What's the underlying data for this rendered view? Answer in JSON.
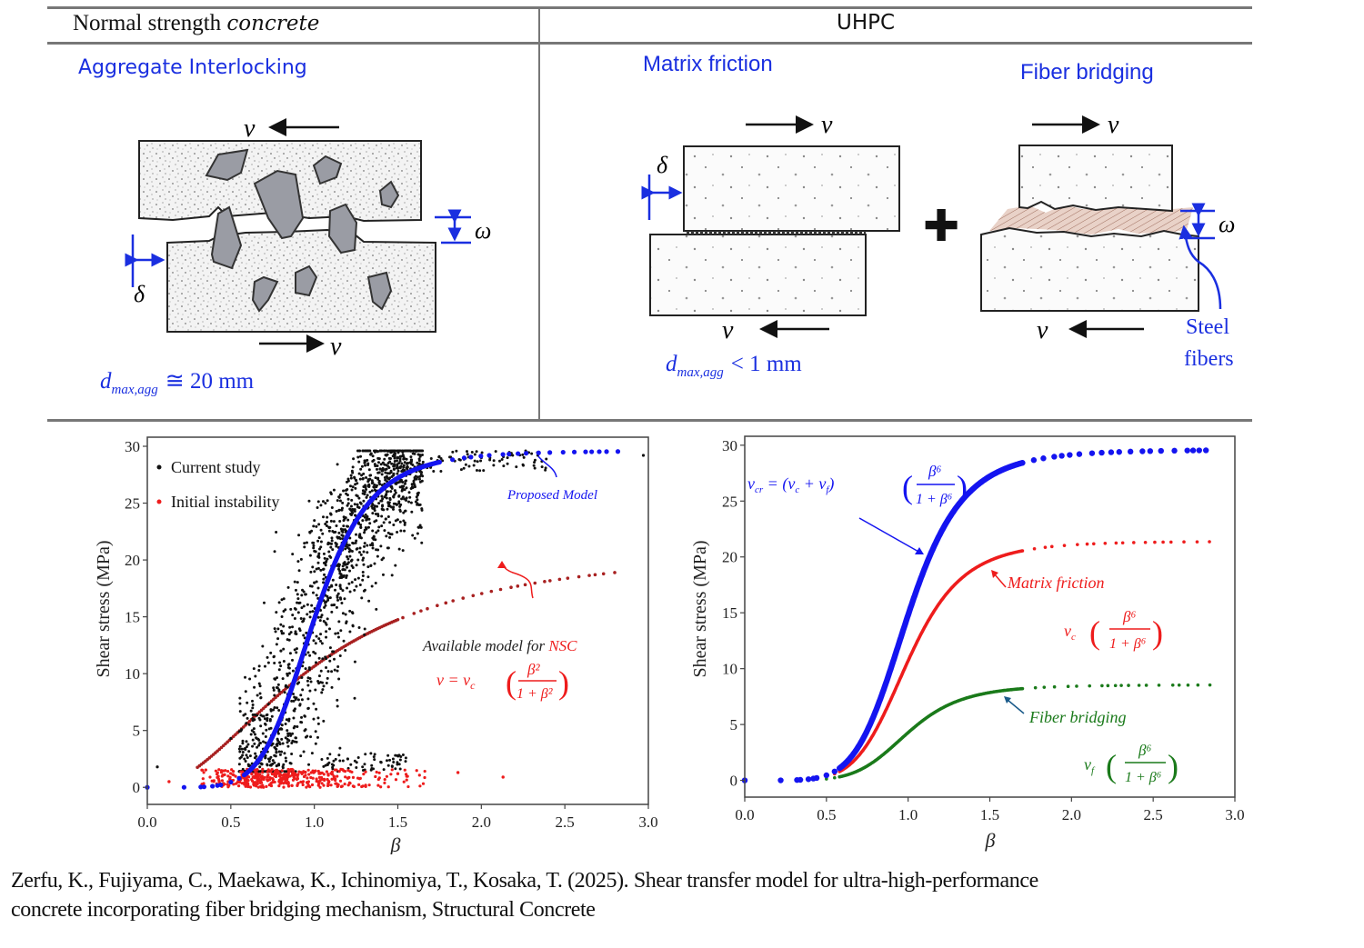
{
  "header": {
    "left_title_plain": "Normal strength ",
    "left_title_italic": "concrete",
    "right_title": "UHPC"
  },
  "nsc_panel": {
    "mechanism": "Aggregate Interlocking",
    "shear_top": "v",
    "shear_bottom": "v",
    "slip_symbol": "δ",
    "opening_symbol": "ω",
    "agg_size": "d",
    "agg_size_sub": "max,agg",
    "agg_size_rel": "≅ 20 mm"
  },
  "uhpc_panel": {
    "mechanism_1": "Matrix friction",
    "mechanism_2": "Fiber bridging",
    "plus_symbol": "✚",
    "shear_top": "v",
    "shear_bottom": "v",
    "slip_symbol": "δ",
    "opening_symbol": "ω",
    "agg_size": "d",
    "agg_size_sub": "max,agg",
    "agg_size_rel": "< 1 mm",
    "fiber_label_1": "Steel",
    "fiber_label_2": "fibers"
  },
  "colors": {
    "blue": "#1a2fe0",
    "model_blue": "#1414f0",
    "red": "#ee1c1c",
    "dark_red": "#a82020",
    "green": "#1a7a1a",
    "black": "#111111"
  },
  "chart_data": [
    {
      "type": "scatter",
      "xlabel": "β",
      "ylabel": "Shear stress (MPa)",
      "xlim": [
        0.0,
        3.0
      ],
      "ylim": [
        -1.5,
        30.8
      ],
      "xticks": [
        "0.0",
        "0.5",
        "1.0",
        "1.5",
        "2.0",
        "2.5",
        "3.0"
      ],
      "yticks": [
        "0",
        "5",
        "10",
        "15",
        "20",
        "25",
        "30"
      ],
      "legend": [
        {
          "label": "Current study",
          "color": "#111111"
        },
        {
          "label": "Initial instability",
          "color": "#ee1c1c"
        }
      ],
      "legend_position": "top-left",
      "series": [
        {
          "name": "Proposed Model",
          "color": "#1414f0",
          "formula": "vcr*beta^6/(1+beta^6)",
          "vmax": 29.6,
          "x_range": [
            0.0,
            2.85
          ]
        },
        {
          "name": "Available model for NSC",
          "color": "#a82020",
          "formula": "vc*beta^2/(1+beta^2)",
          "vmax": 21.3,
          "x_range": [
            0.3,
            2.85
          ]
        },
        {
          "name": "Current study",
          "color": "#111111",
          "cluster_description_points": [
            [
              0.06,
              1.8
            ],
            [
              0.5,
              4.3
            ],
            [
              0.8,
              12
            ],
            [
              1.0,
              18
            ],
            [
              1.1,
              24
            ],
            [
              1.25,
              27
            ],
            [
              1.5,
              29
            ],
            [
              2.0,
              29
            ],
            [
              2.97,
              29.2
            ],
            [
              1.2,
              2.5
            ],
            [
              1.4,
              2.2
            ]
          ]
        },
        {
          "name": "Initial instability",
          "color": "#ee1c1c",
          "cluster_description_points": [
            [
              0.13,
              0.5
            ],
            [
              0.5,
              0.4
            ],
            [
              0.8,
              0.8
            ],
            [
              1.2,
              0.8
            ],
            [
              1.5,
              1.2
            ],
            [
              1.86,
              1.3
            ],
            [
              2.13,
              0.9
            ]
          ]
        }
      ],
      "annotations": {
        "proposed": "Proposed Model",
        "nsc_plain": "Available model for ",
        "nsc_red": "NSC",
        "nsc_eq_lhs": "v = v",
        "nsc_eq_sub": "c",
        "nsc_eq_num": "β²",
        "nsc_eq_den": "1 + β²"
      }
    },
    {
      "type": "line",
      "xlabel": "β",
      "ylabel": "Shear stress (MPa)",
      "xlim": [
        0.0,
        3.0
      ],
      "ylim": [
        -1.5,
        30.8
      ],
      "xticks": [
        "0.0",
        "0.5",
        "1.0",
        "1.5",
        "2.0",
        "2.5",
        "3.0"
      ],
      "yticks": [
        "0",
        "5",
        "10",
        "15",
        "20",
        "25",
        "30"
      ],
      "series": [
        {
          "name": "v_cr total",
          "color": "#1414f0",
          "vmax": 29.6,
          "x_range": [
            0.0,
            2.85
          ]
        },
        {
          "name": "Matrix friction",
          "color": "#ee1c1c",
          "vmax": 21.4,
          "x_range": [
            0.55,
            2.85
          ]
        },
        {
          "name": "Fiber bridging",
          "color": "#1a7a1a",
          "vmax": 8.55,
          "x_range": [
            0.5,
            2.85
          ]
        }
      ],
      "annotations": {
        "total_lhs": "v",
        "total_sub": "cr",
        "total_mid": " = (v",
        "total_sub2": "c",
        "total_mid2": " + v",
        "total_sub3": "f",
        "total_close": ")",
        "frac_num": "β⁶",
        "frac_den": "1 + β⁶",
        "matrix": "Matrix friction",
        "matrix_eq": "v",
        "matrix_eq_sub": "c",
        "fiber": "Fiber bridging",
        "fiber_eq": "v",
        "fiber_eq_sub": "f"
      }
    }
  ],
  "citation": {
    "line1": "Zerfu, K., Fujiyama, C., Maekawa, K., Ichinomiya, T., Kosaka, T. (2025). Shear transfer model for ultra-high-performance",
    "line2": "concrete incorporating fiber bridging mechanism, Structural Concrete"
  }
}
